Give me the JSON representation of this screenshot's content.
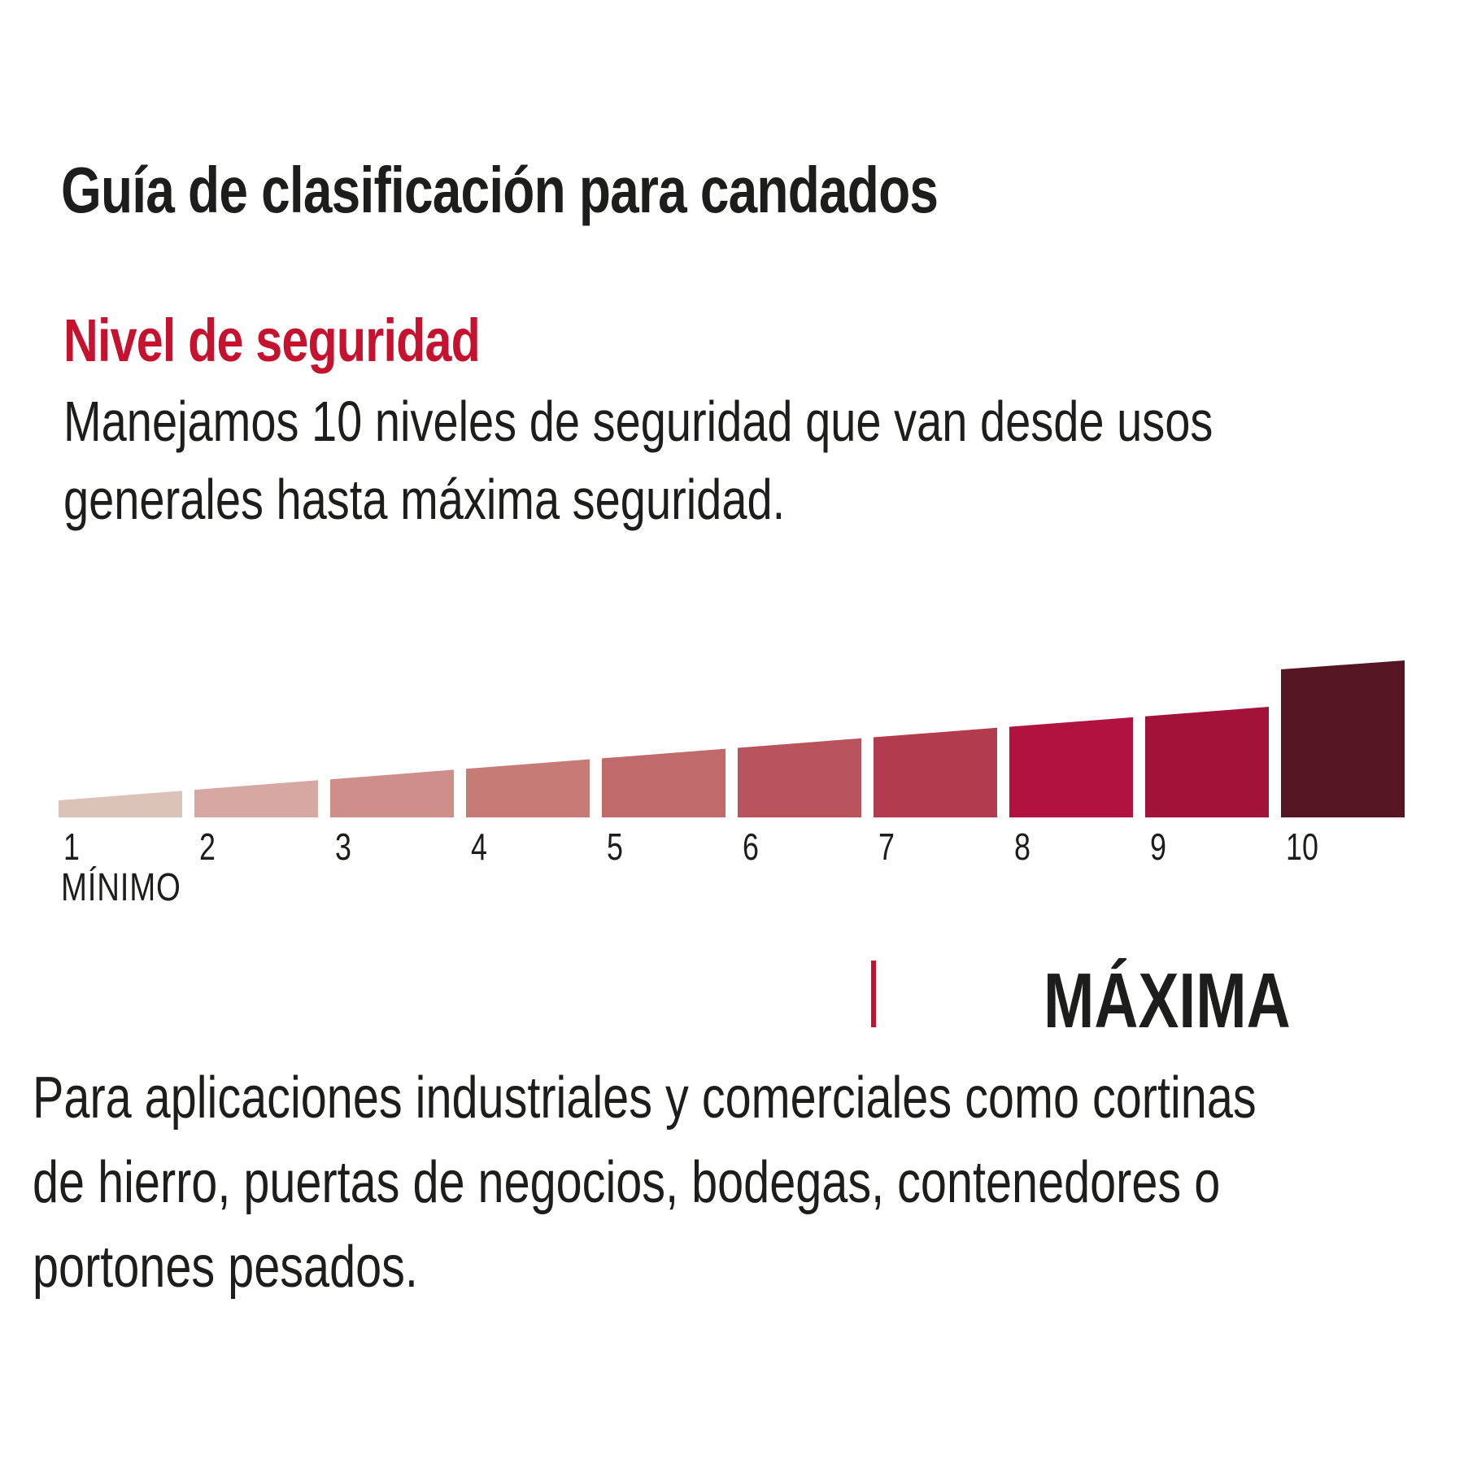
{
  "page": {
    "title": "Guía de clasificación para candados",
    "section_heading": "Nivel de seguridad",
    "intro_lines": {
      "0": "Manejamos 10 niveles de seguridad que van desde usos",
      "1": "generales hasta máxima seguridad."
    },
    "footer_lines": {
      "0": "Para aplicaciones industriales y comerciales como cortinas",
      "1": "de hierro, puertas de negocios, bodegas, contenedores o",
      "2": "portones pesados."
    }
  },
  "colors": {
    "accent_red": "#C5122F",
    "text_black": "#1D1D1B"
  },
  "chart_data": {
    "type": "bar",
    "title": "Nivel de seguridad",
    "categories": [
      "1",
      "2",
      "3",
      "4",
      "5",
      "6",
      "7",
      "8",
      "9",
      "10"
    ],
    "values": [
      1,
      2,
      3,
      4,
      5,
      6,
      7,
      8,
      9,
      10
    ],
    "min_label": "MÍNIMO",
    "max_label": "MÁXIMA",
    "bar_colors": [
      "#DCC3BA",
      "#D7A7A2",
      "#CE8E8A",
      "#C67B76",
      "#C16A6B",
      "#B9545C",
      "#B23C4E",
      "#B11240",
      "#A31238",
      "#551522"
    ],
    "xlabel": "",
    "ylabel": "",
    "legend": "none",
    "grid": "off",
    "layout_note": "10 slanted-top bars rising left to right; level 10 is an emphasized taller dark-maroon bar; labels 1-10 under bars; MÍNIMO under level 1; red tick and MÁXIMA caption below right side"
  }
}
